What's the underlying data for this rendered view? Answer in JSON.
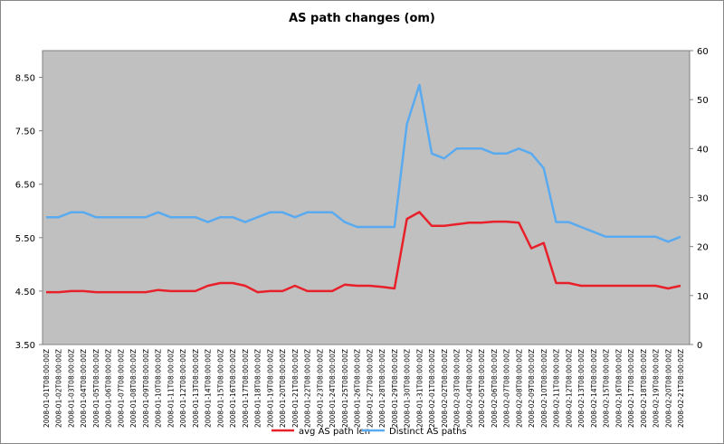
{
  "chart_data": {
    "type": "line",
    "title": "AS path changes (om)",
    "categories": [
      "2008-01-01T08:00:00Z",
      "2008-01-02T08:00:00Z",
      "2008-01-03T08:00:00Z",
      "2008-01-04T08:00:00Z",
      "2008-01-05T08:00:00Z",
      "2008-01-06T08:00:00Z",
      "2008-01-07T08:00:00Z",
      "2008-01-08T08:00:00Z",
      "2008-01-09T08:00:00Z",
      "2008-01-10T08:00:00Z",
      "2008-01-11T08:00:00Z",
      "2008-01-12T08:00:00Z",
      "2008-01-13T08:00:00Z",
      "2008-01-14T08:00:00Z",
      "2008-01-15T08:00:00Z",
      "2008-01-16T08:00:00Z",
      "2008-01-17T08:00:00Z",
      "2008-01-18T08:00:00Z",
      "2008-01-19T08:00:00Z",
      "2008-01-20T08:00:00Z",
      "2008-01-21T08:00:00Z",
      "2008-01-22T08:00:00Z",
      "2008-01-23T08:00:00Z",
      "2008-01-24T08:00:00Z",
      "2008-01-25T08:00:00Z",
      "2008-01-26T08:00:00Z",
      "2008-01-27T08:00:00Z",
      "2008-01-28T08:00:00Z",
      "2008-01-29T08:00:00Z",
      "2008-01-30T08:00:00Z",
      "2008-01-31T08:00:00Z",
      "2008-02-01T08:00:00Z",
      "2008-02-02T08:00:00Z",
      "2008-02-03T08:00:00Z",
      "2008-02-04T08:00:00Z",
      "2008-02-05T08:00:00Z",
      "2008-02-06T08:00:00Z",
      "2008-02-07T08:00:00Z",
      "2008-02-08T08:00:00Z",
      "2008-02-09T08:00:00Z",
      "2008-02-10T08:00:00Z",
      "2008-02-11T08:00:00Z",
      "2008-02-12T08:00:00Z",
      "2008-02-13T08:00:00Z",
      "2008-02-14T08:00:00Z",
      "2008-02-15T08:00:00Z",
      "2008-02-16T08:00:00Z",
      "2008-02-17T08:00:00Z",
      "2008-02-18T08:00:00Z",
      "2008-02-19T08:00:00Z",
      "2008-02-20T08:00:00Z",
      "2008-02-21T08:00:00Z"
    ],
    "series": [
      {
        "name": "avg AS path len",
        "color": "#e8202a",
        "values": [
          4.48,
          4.48,
          4.5,
          4.5,
          4.48,
          4.48,
          4.48,
          4.48,
          4.48,
          4.52,
          4.5,
          4.5,
          4.5,
          4.6,
          4.65,
          4.65,
          4.6,
          4.48,
          4.5,
          4.5,
          4.6,
          4.5,
          4.5,
          4.5,
          4.62,
          4.6,
          4.6,
          4.58,
          4.55,
          5.85,
          5.98,
          5.72,
          5.72,
          5.75,
          5.78,
          5.78,
          5.8,
          5.8,
          5.78,
          5.3,
          5.4,
          4.65,
          4.65,
          4.6,
          4.6,
          4.6,
          4.6,
          4.6,
          4.6,
          4.6,
          4.55,
          4.6
        ]
      },
      {
        "name": "Distinct AS paths",
        "color": "#5aaaf0",
        "axis": "y2",
        "values": [
          26,
          26,
          27,
          27,
          26,
          26,
          26,
          26,
          26,
          27,
          26,
          26,
          26,
          25,
          26,
          26,
          25,
          26,
          27,
          27,
          26,
          27,
          27,
          27,
          25,
          24,
          24,
          24,
          24,
          45,
          53,
          39,
          38,
          40,
          40,
          40,
          39,
          39,
          40,
          39,
          36,
          25,
          25,
          24,
          23,
          22,
          22,
          22,
          22,
          22,
          21,
          22
        ]
      }
    ],
    "ylim": [
      3.5,
      9.0
    ],
    "yticks": [
      {
        "value": 3.5,
        "label": "3.50"
      },
      {
        "value": 4.5,
        "label": "4.50"
      },
      {
        "value": 5.5,
        "label": "5.50"
      },
      {
        "value": 6.5,
        "label": "6.50"
      },
      {
        "value": 7.5,
        "label": "7.50"
      },
      {
        "value": 8.5,
        "label": "8.50"
      }
    ],
    "y2lim": [
      0,
      60
    ],
    "y2ticks": [
      0,
      10,
      20,
      30,
      40,
      50,
      60
    ]
  }
}
